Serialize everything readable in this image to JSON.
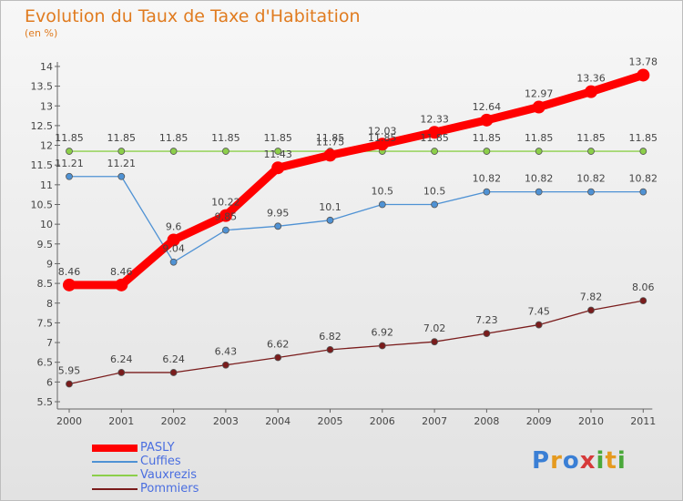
{
  "header": {
    "title": "Evolution du Taux de Taxe d'Habitation",
    "unit": "(en %)"
  },
  "logo": {
    "text": "Proxiti",
    "letters": [
      "P",
      "r",
      "o",
      "x",
      "i",
      "t",
      "i"
    ],
    "colors": [
      "#3a7fd5",
      "#e59a1f",
      "#3a7fd5",
      "#d63a3a",
      "#4aa83a",
      "#e59a1f",
      "#4aa83a"
    ]
  },
  "chart_data": {
    "type": "line",
    "title": "Evolution du Taux de Taxe d'Habitation",
    "ylabel": "(en %)",
    "ylim": [
      5.5,
      14
    ],
    "yticks": [
      "5.5",
      "6",
      "6.5",
      "7",
      "7.5",
      "8",
      "8.5",
      "9",
      "9.5",
      "10",
      "10.5",
      "11",
      "11.5",
      "12",
      "12.5",
      "13",
      "13.5",
      "14"
    ],
    "x": [
      "2000",
      "2001",
      "2002",
      "2003",
      "2004",
      "2005",
      "2006",
      "2007",
      "2008",
      "2009",
      "2010",
      "2011"
    ],
    "legend": "bottom-left",
    "grid": false,
    "series": [
      {
        "name": "PASLY",
        "color": "#ff0000",
        "values": [
          8.46,
          8.46,
          9.6,
          10.22,
          11.43,
          11.75,
          12.03,
          12.33,
          12.64,
          12.97,
          13.36,
          13.78
        ],
        "labels": [
          "8.46",
          "8.46",
          "9.6",
          "10.22",
          "11.43",
          "11.75",
          "12.03",
          "12.33",
          "12.64",
          "12.97",
          "13.36",
          "13.78"
        ]
      },
      {
        "name": "Cuffies",
        "color": "#4f92d4",
        "values": [
          11.21,
          11.21,
          9.04,
          9.85,
          9.95,
          10.1,
          10.5,
          10.5,
          10.82,
          10.82,
          10.82,
          10.82
        ],
        "labels": [
          "11.21",
          "11.21",
          "9.04",
          "9.85",
          "9.95",
          "10.1",
          "10.5",
          "10.5",
          "10.82",
          "10.82",
          "10.82",
          "10.82"
        ]
      },
      {
        "name": "Vauxrezis",
        "color": "#8ccf4a",
        "values": [
          11.85,
          11.85,
          11.85,
          11.85,
          11.85,
          11.85,
          11.85,
          11.85,
          11.85,
          11.85,
          11.85,
          11.85
        ],
        "labels": [
          "11.85",
          "11.85",
          "11.85",
          "11.85",
          "11.85",
          "11.85",
          "11.85",
          "11.85",
          "11.85",
          "11.85",
          "11.85",
          "11.85"
        ]
      },
      {
        "name": "Pommiers",
        "color": "#7a1c1c",
        "values": [
          5.95,
          6.24,
          6.24,
          6.43,
          6.62,
          6.82,
          6.92,
          7.02,
          7.23,
          7.45,
          7.82,
          8.06
        ],
        "labels": [
          "5.95",
          "6.24",
          "6.24",
          "6.43",
          "6.62",
          "6.82",
          "6.92",
          "7.02",
          "7.23",
          "7.45",
          "7.82",
          "8.06"
        ]
      }
    ]
  }
}
